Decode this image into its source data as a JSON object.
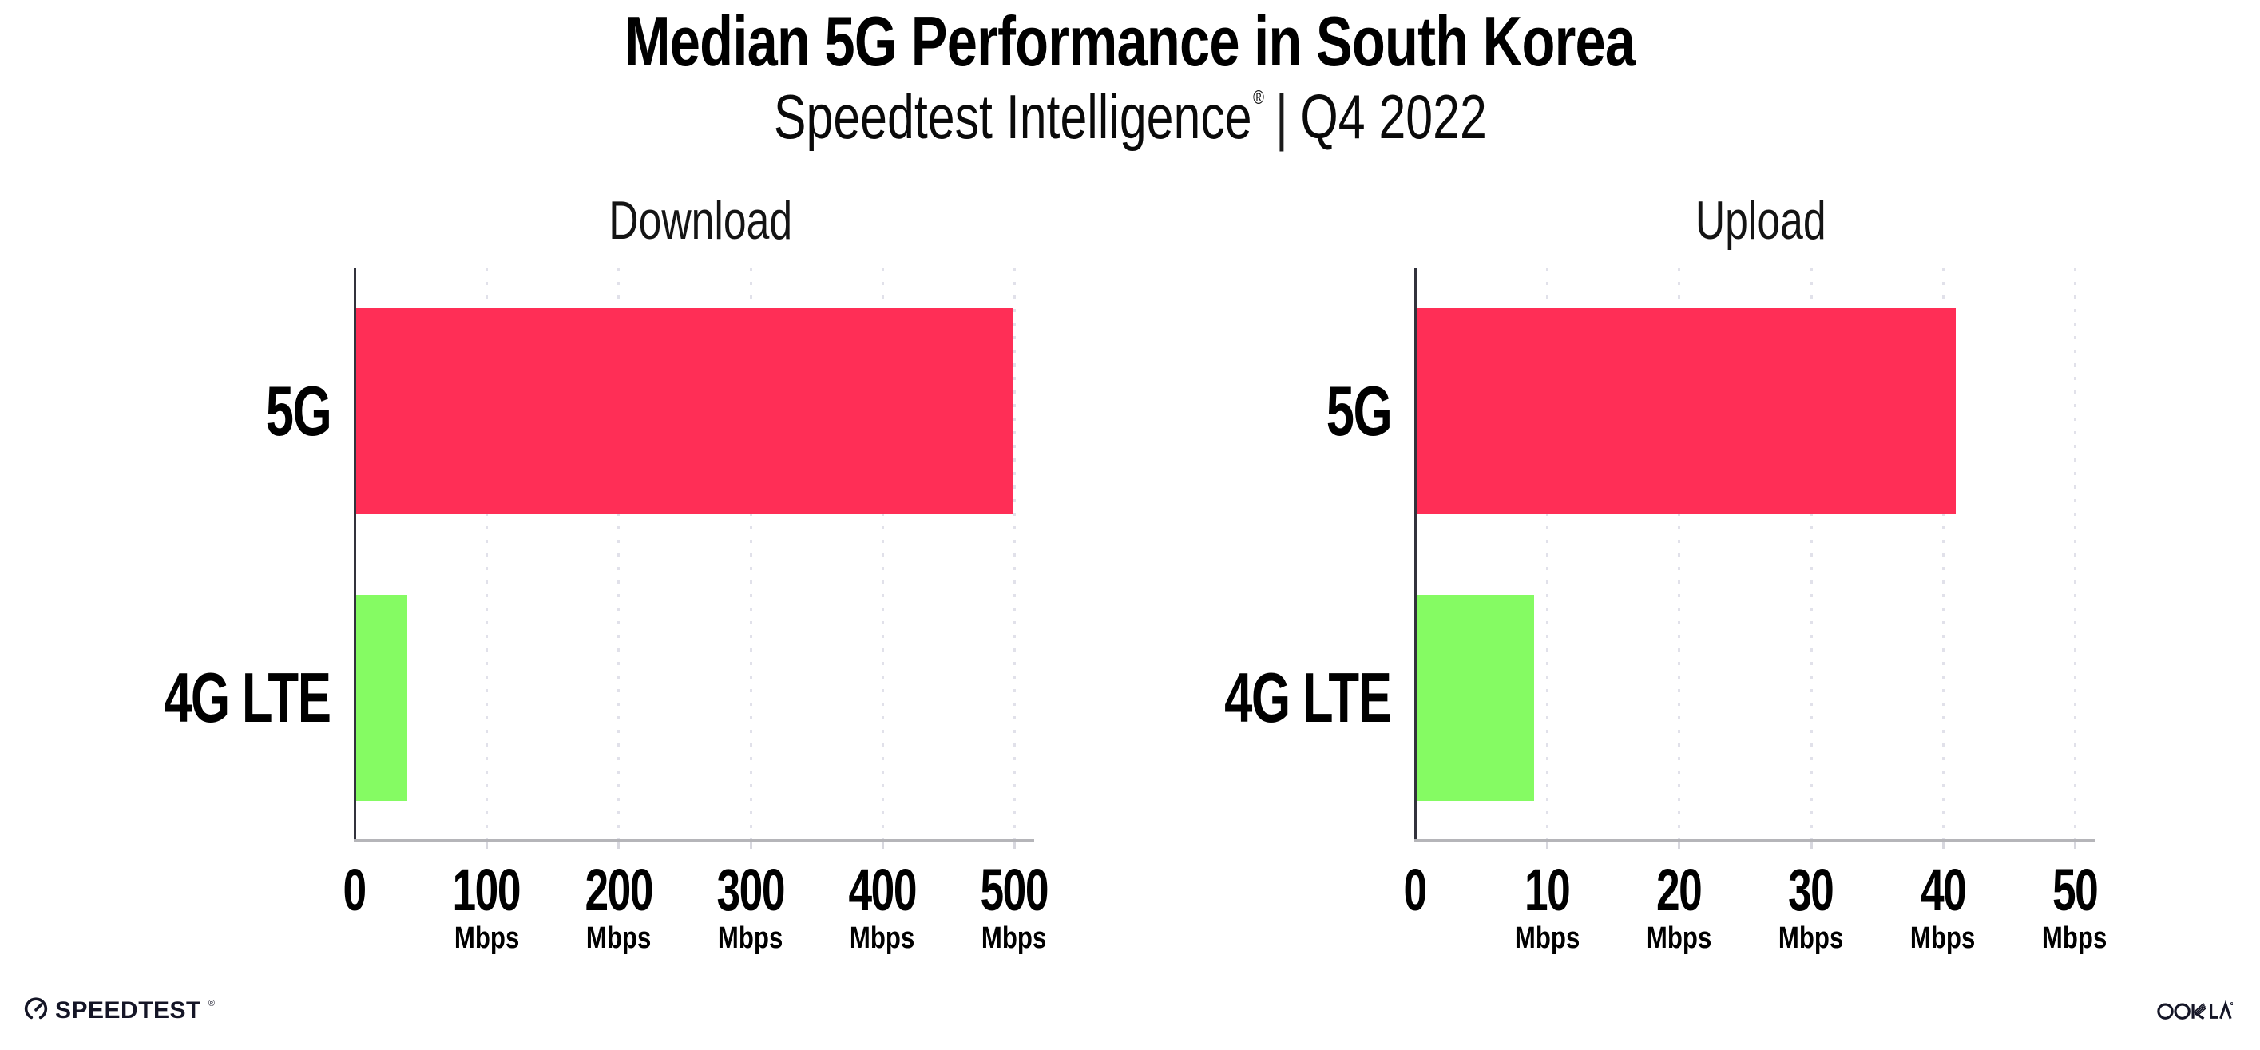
{
  "header": {
    "title": "Median 5G Performance in South Korea",
    "subtitle_brand": "Speedtest Intelligence",
    "subtitle_registered_mark": "®",
    "subtitle_separator": "|",
    "subtitle_period": "Q4 2022"
  },
  "chart_data": [
    {
      "type": "bar",
      "orientation": "horizontal",
      "title": "Download",
      "categories": [
        "5G",
        "4G LTE"
      ],
      "values": [
        499,
        40
      ],
      "unit": "Mbps",
      "xlim": [
        0,
        500
      ],
      "xticks": [
        0,
        100,
        200,
        300,
        400,
        500
      ],
      "tick_unit_label": "Mbps",
      "bar_colors": [
        "#FF2E56",
        "#85FB63"
      ],
      "grid": "dotted-vertical",
      "legend": "none"
    },
    {
      "type": "bar",
      "orientation": "horizontal",
      "title": "Upload",
      "categories": [
        "5G",
        "4G LTE"
      ],
      "values": [
        41,
        9
      ],
      "unit": "Mbps",
      "xlim": [
        0,
        50
      ],
      "xticks": [
        0,
        10,
        20,
        30,
        40,
        50
      ],
      "tick_unit_label": "Mbps",
      "bar_colors": [
        "#FF2E56",
        "#85FB63"
      ],
      "grid": "dotted-vertical",
      "legend": "none"
    }
  ],
  "footer": {
    "speedtest_wordmark": "SPEEDTEST",
    "speedtest_registered_mark": "®",
    "ookla_wordmark": "OOKLA",
    "ookla_registered_mark": "®"
  },
  "colors": {
    "bar_5g": "#FF2E56",
    "bar_4g_lte": "#85FB63",
    "gridline": "#E1E1EA",
    "y_axis": "#32323C",
    "x_axis": "#B5B5B9",
    "axis_tick": "#D7D7DE",
    "text": "#000000",
    "logo_ink": "#141526",
    "background": "#FFFFFF"
  }
}
